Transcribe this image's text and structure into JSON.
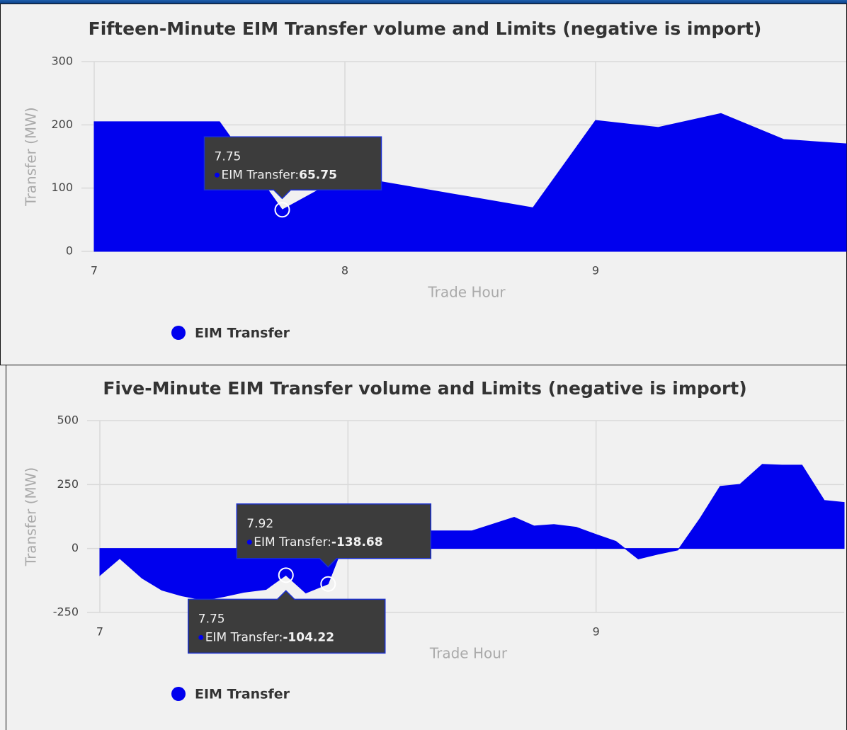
{
  "chart_data": [
    {
      "type": "area",
      "title": "Fifteen-Minute EIM Transfer volume and Limits (negative is import)",
      "x_label": "Trade Hour",
      "y_label": "Transfer (MW)",
      "x": [
        7,
        7.25,
        7.5,
        7.75,
        8,
        8.25,
        8.5,
        8.75,
        9,
        9.25,
        9.5,
        9.75,
        10
      ],
      "series": [
        {
          "name": "EIM Transfer",
          "color": "#0000ee",
          "values": [
            205,
            205,
            205,
            65.75,
            120,
            103,
            86,
            69,
            207,
            196,
            218,
            177,
            170
          ]
        }
      ],
      "xlim": [
        7,
        10
      ],
      "ylim": [
        0,
        300
      ],
      "xticks": [
        7,
        8,
        9
      ],
      "yticks": [
        0,
        100,
        200,
        300
      ],
      "grid": true,
      "legend": "bottom-left",
      "annotations": [
        {
          "x": 7.75,
          "label": "EIM Transfer:",
          "value": 65.75
        }
      ]
    },
    {
      "type": "area",
      "title": "Five-Minute EIM Transfer volume and Limits (negative is import)",
      "x_label": "Trade Hour",
      "y_label": "Transfer (MW)",
      "x": [
        7,
        7.08,
        7.17,
        7.25,
        7.33,
        7.42,
        7.5,
        7.58,
        7.67,
        7.75,
        7.83,
        7.92,
        8,
        8.08,
        8.17,
        8.25,
        8.33,
        8.42,
        8.5,
        8.58,
        8.67,
        8.75,
        8.83,
        8.92,
        9,
        9.08,
        9.17,
        9.25,
        9.33,
        9.42,
        9.5,
        9.58,
        9.67,
        9.75,
        9.83,
        9.92,
        10
      ],
      "series": [
        {
          "name": "EIM Transfer",
          "color": "#0000ee",
          "values": [
            -105,
            -39,
            -116,
            -163,
            -185,
            -202,
            -188,
            -171,
            -160,
            -104.22,
            -174,
            -138.68,
            60,
            65,
            68,
            69,
            69,
            69,
            69,
            94,
            122,
            88,
            94,
            83,
            55,
            28,
            -41,
            -22,
            -6,
            119,
            243,
            251,
            329,
            326,
            326,
            188,
            180
          ]
        }
      ],
      "xlim": [
        7,
        10
      ],
      "ylim": [
        -250,
        500
      ],
      "xticks": [
        7,
        8,
        9
      ],
      "yticks": [
        -250,
        0,
        250,
        500
      ],
      "grid": true,
      "legend": "bottom-left",
      "annotations": [
        {
          "x": 7.92,
          "label": "EIM Transfer:",
          "value": -138.68
        },
        {
          "x": 7.75,
          "label": "EIM Transfer:",
          "value": -104.22
        }
      ]
    }
  ]
}
